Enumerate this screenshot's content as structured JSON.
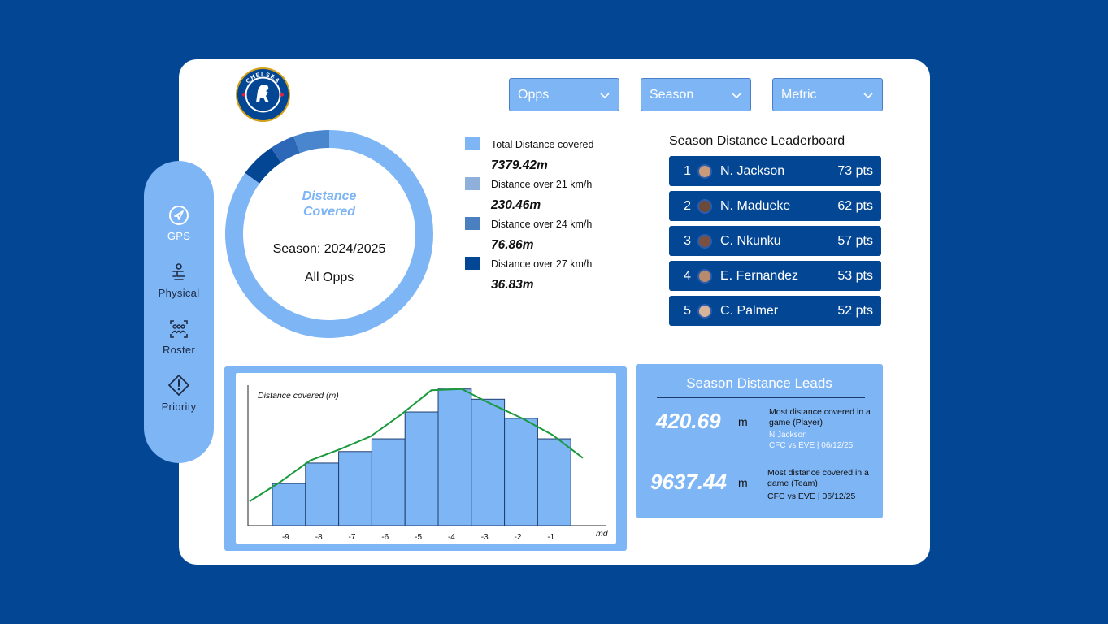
{
  "nav": {
    "items": [
      {
        "label": "GPS",
        "icon": "navigation-icon",
        "active": true
      },
      {
        "label": "Physical",
        "icon": "physical-icon",
        "active": false
      },
      {
        "label": "Roster",
        "icon": "roster-icon",
        "active": false
      },
      {
        "label": "Priority",
        "icon": "priority-icon",
        "active": false
      }
    ]
  },
  "logo": {
    "alt_text": "CHELSEA FOOTBALL CLUB"
  },
  "filters": {
    "opps": "Opps",
    "season": "Season",
    "metric": "Metric"
  },
  "donut": {
    "title_line1": "Distance",
    "title_line2": "Covered",
    "season_label": "Season: 2024/2025",
    "opps_label": "All Opps",
    "segments": [
      {
        "name": "Total Distance covered",
        "value": 7379.42,
        "color": "#7eb5f5"
      },
      {
        "name": "Distance over 21 km/h",
        "value": 230.46,
        "color": "#4a86cd"
      },
      {
        "name": "Distance over 24 km/h",
        "value": 76.86,
        "color": "#2d68b8"
      },
      {
        "name": "Distance over 27 km/h",
        "value": 36.83,
        "color": "#034694"
      }
    ]
  },
  "legend": [
    {
      "label": "Total Distance covered",
      "value": "7379.42m",
      "color": "#7eb5f5"
    },
    {
      "label": "Distance over 21 km/h",
      "value": "230.46m",
      "color": "#8fb0db"
    },
    {
      "label": "Distance over 24 km/h",
      "value": "76.86m",
      "color": "#4a7fc0"
    },
    {
      "label": "Distance over 27 km/h",
      "value": "36.83m",
      "color": "#034694"
    }
  ],
  "leaderboard": {
    "title": "Season Distance Leaderboard",
    "rows": [
      {
        "rank": "1",
        "name": "N. Jackson",
        "pts": "73 pts"
      },
      {
        "rank": "2",
        "name": "N. Madueke",
        "pts": "62 pts"
      },
      {
        "rank": "3",
        "name": "C. Nkunku",
        "pts": "57 pts"
      },
      {
        "rank": "4",
        "name": "E. Fernandez",
        "pts": "53 pts"
      },
      {
        "rank": "5",
        "name": "C. Palmer",
        "pts": "52 pts"
      }
    ]
  },
  "chart_data": {
    "type": "bar",
    "ylabel": "Distance covered (m)",
    "xlabel": "md",
    "categories": [
      "-9",
      "-8",
      "-7",
      "-6",
      "-5",
      "-4",
      "-3",
      "-2",
      "-1"
    ],
    "values": [
      0.33,
      0.49,
      0.58,
      0.68,
      0.89,
      1.07,
      0.99,
      0.84,
      0.68
    ],
    "trend_line": [
      0.19,
      0.34,
      0.51,
      0.6,
      0.7,
      0.87,
      1.06,
      1.07,
      0.95,
      0.84,
      0.71,
      0.53
    ],
    "bar_color": "#7eb5f5",
    "line_color": "#1a9a3c"
  },
  "leads": {
    "title": "Season Distance Leads",
    "player": {
      "value": "420.69",
      "unit": "m",
      "desc": "Most distance covered in a game (Player)",
      "who": "N Jackson",
      "match": "CFC vs EVE | 06/12/25"
    },
    "team": {
      "value": "9637.44",
      "unit": "m",
      "desc": "Most distance covered in a game (Team)",
      "match": "CFC vs EVE | 06/12/25"
    }
  }
}
